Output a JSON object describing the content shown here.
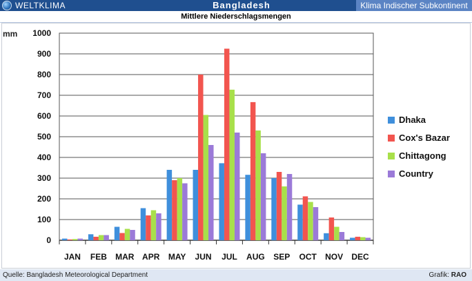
{
  "header": {
    "brand": "WELTKLIMA",
    "country": "Bangladesh",
    "region": "Klima Indischer Subkontinent",
    "subtitle": "Mittlere Niederschlagsmengen"
  },
  "footer": {
    "source": "Quelle: Bangladesh Meteorological Department",
    "credit_label": "Grafik:",
    "credit_name": "RAO"
  },
  "chart_data": {
    "type": "bar",
    "ylabel": "mm",
    "ylim": [
      0,
      1000
    ],
    "yticks": [
      0,
      100,
      200,
      300,
      400,
      500,
      600,
      700,
      800,
      900,
      1000
    ],
    "categories": [
      "JAN",
      "FEB",
      "MAR",
      "APR",
      "MAY",
      "JUN",
      "JUL",
      "AUG",
      "SEP",
      "OCT",
      "NOV",
      "DEC"
    ],
    "legend_position": "right",
    "grid": true,
    "series": [
      {
        "name": "Dhaka",
        "color": "#3f8fdc",
        "values": [
          8,
          29,
          65,
          155,
          340,
          340,
          372,
          316,
          300,
          172,
          34,
          12
        ]
      },
      {
        "name": "Cox's Bazar",
        "color": "#f2554f",
        "values": [
          4,
          17,
          35,
          120,
          290,
          800,
          925,
          667,
          330,
          212,
          110,
          17
        ]
      },
      {
        "name": "Chittagong",
        "color": "#a8e04a",
        "values": [
          6,
          25,
          55,
          145,
          300,
          605,
          727,
          530,
          260,
          185,
          65,
          15
        ]
      },
      {
        "name": "Country",
        "color": "#9b7ad8",
        "values": [
          8,
          25,
          50,
          130,
          275,
          460,
          520,
          420,
          320,
          160,
          40,
          12
        ]
      }
    ]
  }
}
